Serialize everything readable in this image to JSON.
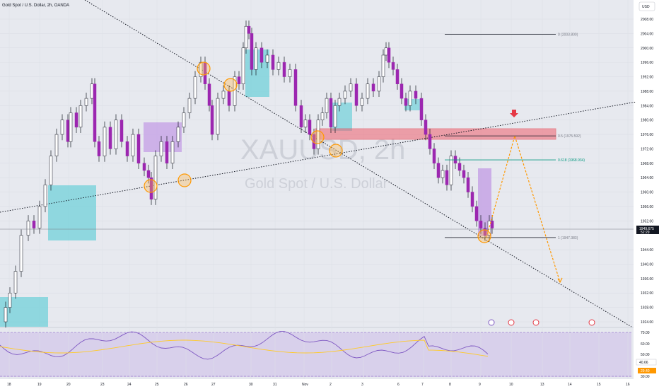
{
  "header": {
    "title": "Gold Spot / U.S. Dollar, 2h, OANDA",
    "currency_button": "USD"
  },
  "watermark": {
    "symbol": "XAUUSD, 2h",
    "name": "Gold Spot / U.S. Dollar"
  },
  "price_axis": {
    "labels": [
      "2008.00",
      "2004.00",
      "2000.00",
      "1996.00",
      "1992.00",
      "1988.00",
      "1984.00",
      "1980.00",
      "1976.00",
      "1972.00",
      "1968.00",
      "1964.00",
      "1960.00",
      "1956.00",
      "1952.00",
      "1944.00",
      "1940.00",
      "1936.00",
      "1932.00",
      "1928.00",
      "1924.00"
    ],
    "current_price": "1949.675",
    "countdown": "52:29",
    "current_price_color": "#131722"
  },
  "rsi_axis": {
    "labels": [
      "70.00",
      "60.00",
      "50.00",
      "30.00"
    ],
    "value_1": "40.66",
    "value_2": "29.40"
  },
  "time_axis": {
    "labels": [
      "18",
      "19",
      "20",
      "23",
      "24",
      "25",
      "26",
      "27",
      "30",
      "31",
      "Nov",
      "2",
      "3",
      "6",
      "7",
      "8",
      "9",
      "10",
      "13",
      "14",
      "15",
      "16"
    ]
  },
  "fib_levels": [
    {
      "label": "0 (2003.800)",
      "value": 2003.8
    },
    {
      "label": "0.5 (1975.592)",
      "value": 1975.592
    },
    {
      "label": "0.618 (1968.934)",
      "value": 1968.934
    },
    {
      "label": "1 (1947.383)",
      "value": 1947.383
    }
  ],
  "colors": {
    "up": "#ffffff",
    "down": "#9c27b0",
    "wick": "#131722",
    "zone_teal": "#7fd3dc",
    "zone_purple": "#c8a7e6",
    "resistance_zone": "#f0606e",
    "projection": "#ff9800",
    "fib_green": "#089981",
    "rsi_line": "#7e57c2",
    "rsi_ma": "#ffca28"
  },
  "chart_data": {
    "type": "candlestick",
    "title": "Gold Spot / U.S. Dollar, 2h, OANDA",
    "symbol": "XAUUSD",
    "timeframe": "2h",
    "y_range": [
      1922,
      2012
    ],
    "x_ticks": [
      "18",
      "19",
      "20",
      "23",
      "24",
      "25",
      "26",
      "27",
      "30",
      "31",
      "Nov",
      "2",
      "3",
      "6",
      "7",
      "8",
      "9",
      "10",
      "13",
      "14",
      "15",
      "16"
    ],
    "annotations": {
      "fib_retracement": [
        {
          "level": "0",
          "price": 2003.8
        },
        {
          "level": "0.5",
          "price": 1975.592
        },
        {
          "level": "0.618",
          "price": 1968.934
        },
        {
          "level": "1",
          "price": 1947.383
        }
      ],
      "resistance_zone": [
        1973.5,
        1977.5
      ],
      "projection_path": [
        {
          "date": "9",
          "price": 1947.4
        },
        {
          "date": "10",
          "price": 1975.6
        },
        {
          "date": "13",
          "price": 1935.0
        }
      ],
      "current_price": 1949.675
    },
    "rsi": {
      "levels": [
        70,
        60,
        50,
        30
      ],
      "last": 40.66,
      "signal": 29.4
    }
  }
}
